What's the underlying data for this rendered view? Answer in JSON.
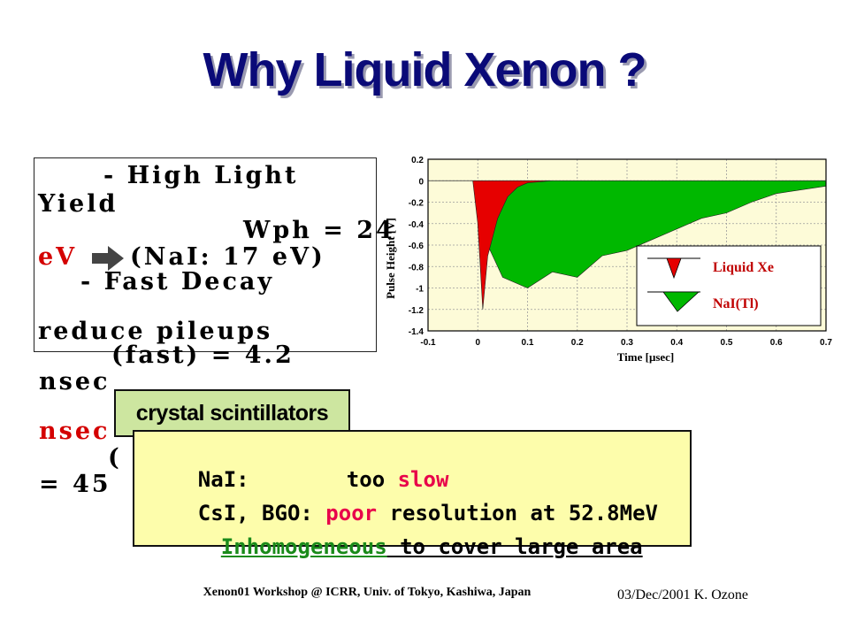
{
  "slide": {
    "title": "Why Liquid Xenon ?"
  },
  "garbled": {
    "lines": [
      "- High Light",
      "Yield",
      "Wph = 24",
      "eV",
      "(NaI: 17 eV)",
      "- Fast Decay",
      "reduce pileups",
      "(fast) = 4.2",
      "nsec",
      "nsec",
      "( ",
      "= 45"
    ]
  },
  "overlay": {
    "crystal_label": "crystal scintillators",
    "nai_label": "NaI:",
    "nai_pre": "too ",
    "nai_slow": "slow",
    "csi_label": "CsI, BGO: ",
    "csi_poor": "poor",
    "csi_rest": " resolution at 52.8MeV",
    "inhom": "Inhomogeneous",
    "inhom_rest": " to cover large area"
  },
  "chart_data": {
    "type": "area",
    "ylabel": "Pulse Height [V]",
    "xlabel": "Time [μsec]",
    "xlim": [
      -0.1,
      0.7
    ],
    "ylim": [
      -1.4,
      0.2
    ],
    "x_ticks": [
      "-0.1",
      "0",
      "0.1",
      "0.2",
      "0.3",
      "0.4",
      "0.5",
      "0.6",
      "0.7"
    ],
    "y_ticks": [
      "0.2",
      "0",
      "-0.2",
      "-0.4",
      "-0.6",
      "-0.8",
      "-1",
      "-1.2",
      "-1.4"
    ],
    "grid": true,
    "legend": {
      "placement": "right",
      "entries": [
        "Liquid Xe",
        "NaI(Tl)"
      ]
    },
    "series": [
      {
        "name": "Liquid Xe",
        "color": "#e60000",
        "x": [
          -0.1,
          -0.01,
          0.0,
          0.01,
          0.02,
          0.04,
          0.06,
          0.08,
          0.1,
          0.15,
          0.7
        ],
        "y": [
          0.0,
          0.0,
          -0.4,
          -1.2,
          -0.7,
          -0.35,
          -0.15,
          -0.06,
          -0.02,
          0.0,
          0.0
        ]
      },
      {
        "name": "NaI(Tl)",
        "color": "#00b800",
        "x": [
          -0.1,
          0.0,
          0.02,
          0.05,
          0.1,
          0.15,
          0.2,
          0.25,
          0.3,
          0.35,
          0.4,
          0.45,
          0.5,
          0.55,
          0.6,
          0.7
        ],
        "y": [
          0.0,
          0.0,
          -0.6,
          -0.9,
          -1.0,
          -0.85,
          -0.9,
          -0.7,
          -0.65,
          -0.55,
          -0.45,
          -0.35,
          -0.3,
          -0.2,
          -0.12,
          -0.05
        ]
      }
    ]
  },
  "footer": {
    "center": "Xenon01 Workshop @ ICRR, Univ. of Tokyo, Kashiwa, Japan",
    "right": "03/Dec/2001 K. Ozone"
  }
}
